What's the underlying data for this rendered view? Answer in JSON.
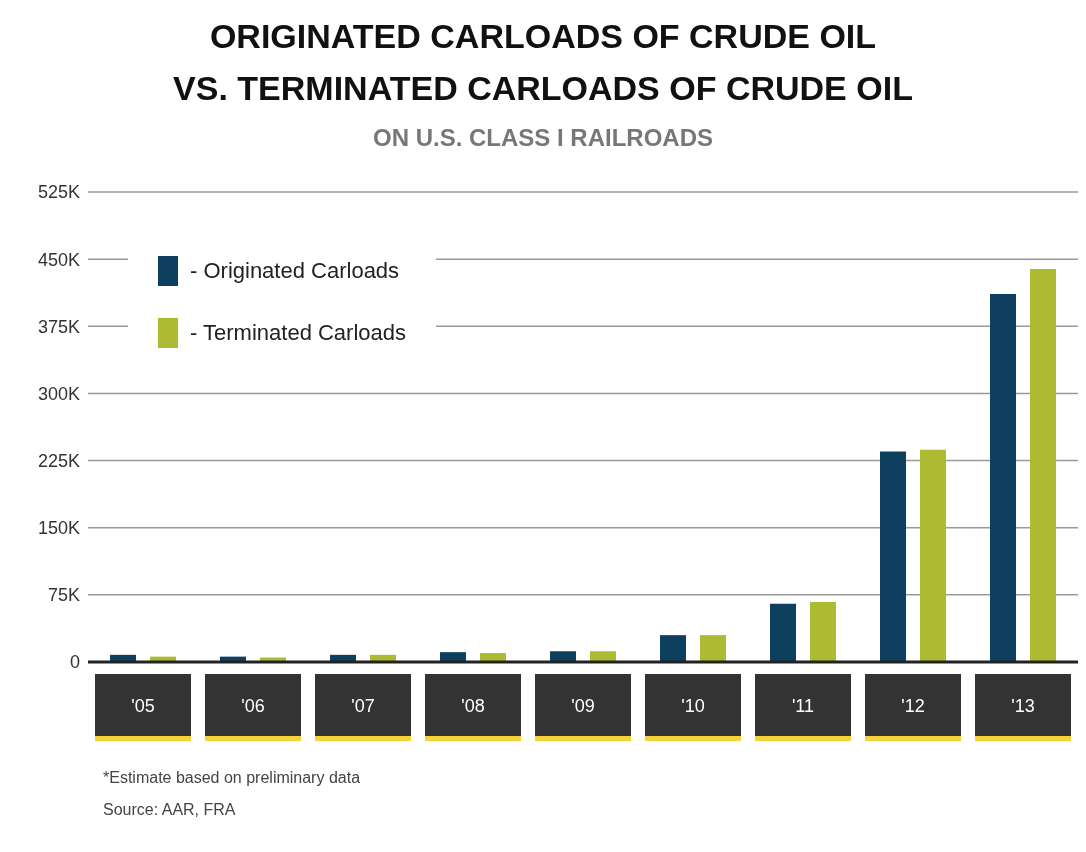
{
  "chart_data": {
    "type": "bar",
    "title": "ORIGINATED CARLOADS OF CRUDE OIL\nVS. TERMINATED CARLOADS OF CRUDE OIL",
    "subtitle": "ON U.S. CLASS I RAILROADS",
    "categories": [
      "'05",
      "'06",
      "'07",
      "'08",
      "'09",
      "'10",
      "'11",
      "'12",
      "'13"
    ],
    "series": [
      {
        "name": "- Originated Carloads",
        "color": "#0e3f5f",
        "values": [
          8,
          6,
          8,
          11,
          12,
          30,
          65,
          235,
          411
        ]
      },
      {
        "name": "- Terminated Carloads",
        "color": "#adba32",
        "values": [
          6,
          5,
          8,
          10,
          12,
          30,
          67,
          237,
          439
        ]
      }
    ],
    "ylim": [
      0,
      525
    ],
    "yticks": [
      0,
      {
        "value": 75,
        "label": "75K"
      },
      {
        "value": 150,
        "label": "150K"
      },
      {
        "value": 225,
        "label": "225K"
      },
      {
        "value": 300,
        "label": "300K"
      },
      {
        "value": 375,
        "label": "375K"
      },
      {
        "value": 450,
        "label": "450K"
      },
      {
        "value": 525,
        "label": "525K"
      }
    ],
    "grid": "y",
    "legend": "top left",
    "annotations": [
      "*Estimate based on preliminary data",
      "Source: AAR, FRA"
    ]
  }
}
